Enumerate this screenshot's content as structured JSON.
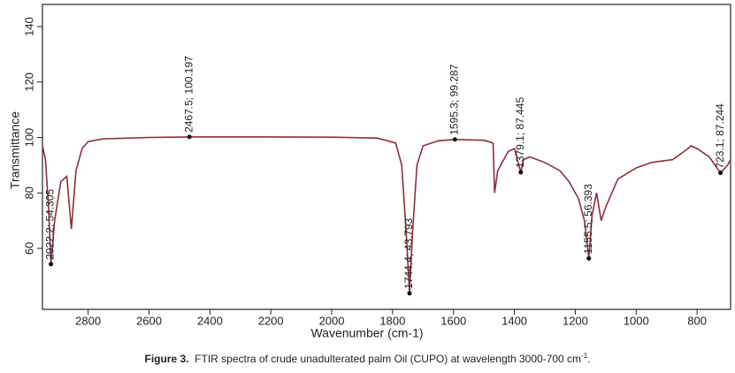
{
  "chart_data": {
    "type": "line",
    "x_label": "Wavenumber (cm-1)",
    "y_label": "Transmittance",
    "x": [
      2950,
      2940,
      2930,
      2922.2,
      2910,
      2890,
      2870,
      2855,
      2840,
      2820,
      2800,
      2750,
      2600,
      2467.5,
      2200,
      2000,
      1850,
      1790,
      1770,
      1755,
      1744.4,
      1735,
      1720,
      1700,
      1650,
      1595.3,
      1500,
      1470,
      1465,
      1455,
      1440,
      1420,
      1400,
      1379.1,
      1370,
      1350,
      1300,
      1250,
      1220,
      1190,
      1170,
      1155.5,
      1145,
      1130,
      1115,
      1100,
      1060,
      1000,
      950,
      880,
      830,
      820,
      800,
      760,
      723.1,
      700,
      690
    ],
    "values": [
      97,
      92,
      75,
      54.305,
      70,
      84,
      86,
      67,
      88,
      96,
      98.5,
      99.5,
      100,
      100.197,
      100.2,
      100.1,
      99.8,
      98,
      90,
      65,
      43.793,
      65,
      90,
      97,
      98.8,
      99.287,
      99,
      98,
      80,
      88,
      91,
      95,
      96,
      87.445,
      92,
      93,
      91,
      88,
      84,
      78,
      70,
      56.393,
      72,
      80,
      70,
      75,
      85,
      89,
      91,
      92,
      96,
      97,
      96,
      93,
      87.244,
      90,
      92
    ],
    "color": "#8c2f3c",
    "xlim": [
      2950,
      690
    ],
    "ylim": [
      38,
      148
    ],
    "xticks": [
      2800,
      2600,
      2400,
      2200,
      2000,
      1800,
      1600,
      1400,
      1200,
      1000,
      800
    ],
    "yticks": [
      60,
      80,
      100,
      120,
      140
    ],
    "annotations": [
      {
        "x": 2922.2,
        "y": 54.305,
        "label": "2922.2; 54.305"
      },
      {
        "x": 2467.5,
        "y": 100.197,
        "label": "2467.5; 100.197"
      },
      {
        "x": 1744.4,
        "y": 43.793,
        "label": "1744.4; 43.793"
      },
      {
        "x": 1595.3,
        "y": 99.287,
        "label": "1595.3; 99.287"
      },
      {
        "x": 1379.1,
        "y": 87.445,
        "label": "1379.1; 87.445"
      },
      {
        "x": 1155.5,
        "y": 56.393,
        "label": "1155.5; 56.393"
      },
      {
        "x": 723.1,
        "y": 87.244,
        "label": "723.1; 87.244"
      }
    ],
    "caption_label": "Figure 3.",
    "caption": "FTIR spectra of crude unadulterated palm Oil (CUPO) at wavelength 3000-700 cm",
    "caption_sup": "-1",
    "caption_end": "."
  }
}
